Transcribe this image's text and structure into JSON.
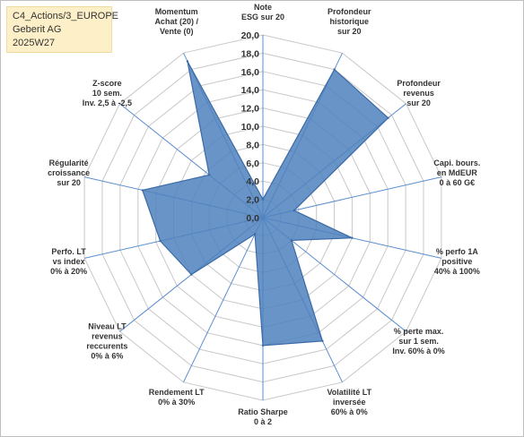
{
  "info": {
    "line1": "C4_Actions/3_EUROPE",
    "line2": "Geberit AG",
    "line3": "2025W27"
  },
  "chart_data": {
    "type": "radar",
    "scale": {
      "min": 0,
      "max": 20,
      "step": 2
    },
    "ticks": [
      "0,0",
      "2,0",
      "4,0",
      "6,0",
      "8,0",
      "10,0",
      "12,0",
      "14,0",
      "16,0",
      "18,0",
      "20,0"
    ],
    "axes": [
      {
        "label": [
          "Note",
          "ESG sur 20"
        ],
        "value": 2.0
      },
      {
        "label": [
          "Profondeur",
          "historique",
          "sur 20"
        ],
        "value": 18.0
      },
      {
        "label": [
          "Profondeur",
          "revenus",
          "sur 20"
        ],
        "value": 17.5
      },
      {
        "label": [
          "Capi. bours.",
          "en MdEUR",
          "0 à 60 G€"
        ],
        "value": 3.5
      },
      {
        "label": [
          "% perfo 1A",
          "positive",
          "40% à 100%"
        ],
        "value": 10.0
      },
      {
        "label": [
          "% perte max.",
          "sur 1 sem.",
          "Inv. 60% à 0%"
        ],
        "value": 4.0
      },
      {
        "label": [
          "Volatilité LT",
          "inversée",
          "60% à 0%"
        ],
        "value": 15.0
      },
      {
        "label": [
          "Ratio Sharpe",
          "0 à 2"
        ],
        "value": 14.0
      },
      {
        "label": [
          "Rendement LT",
          "0% à 30%"
        ],
        "value": 2.0
      },
      {
        "label": [
          "Niveau LT",
          "revenus",
          "reccurents",
          "0% à 6%"
        ],
        "value": 10.0
      },
      {
        "label": [
          "Perfo. LT",
          "vs index",
          "0% à 20%"
        ],
        "value": 11.5
      },
      {
        "label": [
          "Régularité",
          "croissance",
          "sur 20"
        ],
        "value": 13.5
      },
      {
        "label": [
          "Z-score",
          "10 sem.",
          "Inv. 2,5 à -2,5"
        ],
        "value": 7.5
      },
      {
        "label": [
          "Momentum",
          "Achat (20) /",
          "Vente (0)"
        ],
        "value": 19.0
      }
    ],
    "colors": {
      "fill": "#4f81bd",
      "stroke": "#3a6aa6",
      "grid": "#c8c8c8",
      "spoke": "#5b8fd0"
    }
  }
}
